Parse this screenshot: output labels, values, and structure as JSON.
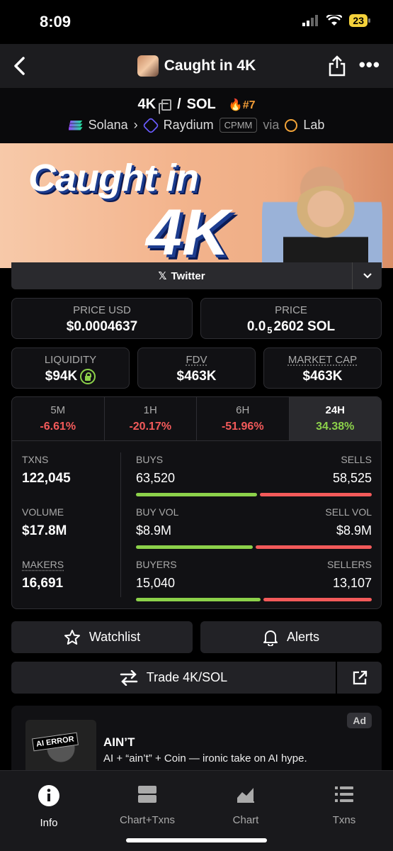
{
  "status": {
    "time": "8:09",
    "battery": "23"
  },
  "nav": {
    "title": "Caught in 4K"
  },
  "pair": {
    "base": "4K",
    "quote": "SOL",
    "rank": "#7",
    "chain": "Solana",
    "dex": "Raydium",
    "pool_type": "CPMM",
    "via": "via",
    "launchpad": "Lab"
  },
  "banner": {
    "line1": "Caught in",
    "line2": "4K"
  },
  "social": {
    "label": "Twitter"
  },
  "price_usd": {
    "label": "PRICE USD",
    "value": "$0.0004637"
  },
  "price_native": {
    "label": "PRICE",
    "prefix": "0.0",
    "sub": "5",
    "suffix": "2602 SOL"
  },
  "liquidity": {
    "label": "LIQUIDITY",
    "value": "$94K"
  },
  "fdv": {
    "label": "FDV",
    "value": "$463K"
  },
  "market_cap": {
    "label": "MARKET CAP",
    "value": "$463K"
  },
  "timeframes": [
    {
      "label": "5M",
      "change": "-6.61%"
    },
    {
      "label": "1H",
      "change": "-20.17%"
    },
    {
      "label": "6H",
      "change": "-51.96%"
    },
    {
      "label": "24H",
      "change": "34.38%"
    }
  ],
  "txns": {
    "label": "TXNS",
    "value": "122,045",
    "buys_label": "BUYS",
    "buys": "63,520",
    "sells_label": "SELLS",
    "sells": "58,525",
    "buy_fraction": 0.52
  },
  "volume": {
    "label": "VOLUME",
    "value": "$17.8M",
    "buy_label": "BUY VOL",
    "buy": "$8.9M",
    "sell_label": "SELL VOL",
    "sell": "$8.9M",
    "buy_fraction": 0.5
  },
  "makers": {
    "label": "MAKERS",
    "value": "16,691",
    "buyers_label": "BUYERS",
    "buyers": "15,040",
    "sellers_label": "SELLERS",
    "sellers": "13,107",
    "buy_fraction": 0.534
  },
  "actions": {
    "watchlist": "Watchlist",
    "alerts": "Alerts",
    "trade": "Trade 4K/SOL"
  },
  "ad": {
    "badge": "Ad",
    "thumb_label": "AI ERROR",
    "title": "AIN’T",
    "description": "AI + “ain’t” + Coin — ironic take on AI hype."
  },
  "tabbar": [
    {
      "label": "Info",
      "icon": "info-icon"
    },
    {
      "label": "Chart+Txns",
      "icon": "split-icon"
    },
    {
      "label": "Chart",
      "icon": "chart-icon"
    },
    {
      "label": "Txns",
      "icon": "list-icon"
    }
  ],
  "colors": {
    "positive": "#8cd14a",
    "negative": "#f35a5a",
    "rank": "#f29d38"
  }
}
